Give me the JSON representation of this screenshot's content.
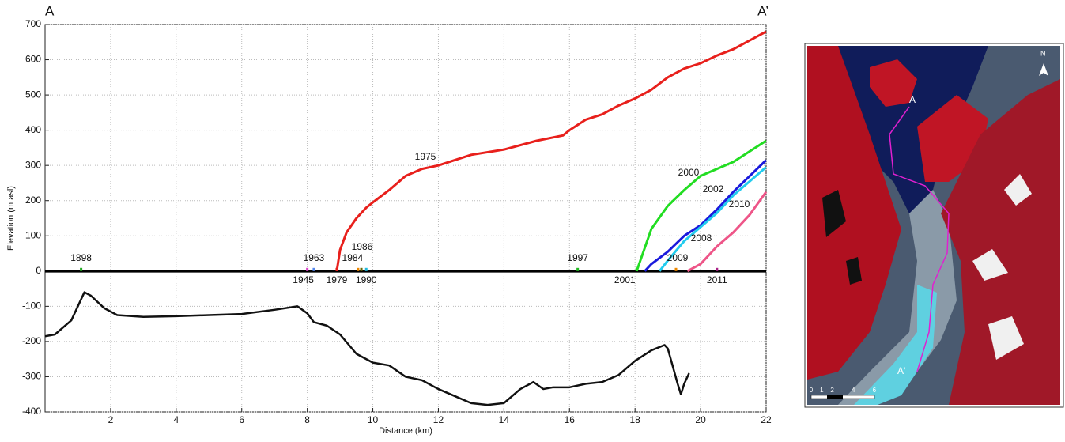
{
  "chart_data": {
    "type": "line",
    "corner_labels": [
      "A",
      "A’"
    ],
    "x_label": "Distance (km)",
    "y_label": "Elevation (m asl)",
    "xlim": [
      0,
      22
    ],
    "xticks": [
      2,
      4,
      6,
      8,
      10,
      12,
      14,
      16,
      18,
      20,
      22
    ],
    "ylim": [
      -400,
      700
    ],
    "yticks": [
      -400,
      -300,
      -200,
      -100,
      0,
      100,
      200,
      300,
      400,
      500,
      600,
      700
    ],
    "grid": true,
    "series": [
      {
        "name": "1975",
        "color": "#e8201c",
        "x": [
          8.9,
          9.0,
          9.2,
          9.5,
          9.8,
          10.0,
          10.5,
          11.0,
          11.5,
          12.0,
          13.0,
          14.0,
          15.0,
          15.8,
          16.0,
          16.5,
          17.0,
          17.5,
          18.0,
          18.5,
          19.0,
          19.5,
          20.0,
          20.5,
          21.0,
          21.5,
          22.0
        ],
        "values": [
          0,
          60,
          110,
          150,
          180,
          195,
          230,
          270,
          290,
          300,
          330,
          345,
          370,
          385,
          400,
          430,
          445,
          470,
          490,
          515,
          550,
          575,
          590,
          612,
          630,
          655,
          680
        ]
      },
      {
        "name": "2000",
        "color": "#22dd22",
        "x": [
          18.05,
          18.5,
          19.0,
          19.5,
          20.0,
          20.5,
          21.0,
          21.5,
          22.0
        ],
        "values": [
          0,
          120,
          185,
          230,
          270,
          290,
          310,
          340,
          370
        ]
      },
      {
        "name": "2002",
        "color": "#1a1adc",
        "x": [
          18.3,
          18.5,
          19.0,
          19.5,
          20.0,
          20.5,
          21.0,
          21.5,
          22.0
        ],
        "values": [
          0,
          20,
          55,
          100,
          130,
          175,
          225,
          270,
          315
        ]
      },
      {
        "name": "2010",
        "color": "#22ccee",
        "x": [
          18.75,
          19.0,
          19.5,
          20.0,
          20.5,
          21.0,
          21.5,
          22.0
        ],
        "values": [
          0,
          30,
          85,
          125,
          165,
          215,
          255,
          295
        ]
      },
      {
        "name": "2008",
        "color": "#ee5588",
        "x": [
          19.6,
          20.0,
          20.5,
          21.0,
          21.5,
          22.0
        ],
        "values": [
          0,
          20,
          70,
          110,
          160,
          225
        ]
      },
      {
        "color": "#111111",
        "x": [
          0,
          0.3,
          0.8,
          1.2,
          1.4,
          1.8,
          2.2,
          3.0,
          4.0,
          5.0,
          6.0,
          7.0,
          7.7,
          8.0,
          8.2,
          8.6,
          9.0,
          9.5,
          10.0,
          10.5,
          11.0,
          11.5,
          12.0,
          12.5,
          13.0,
          13.5,
          14.0,
          14.5,
          14.9,
          15.2,
          15.5,
          16.0,
          16.5,
          17.0,
          17.5,
          18.0,
          18.5,
          18.9,
          19.0,
          19.3,
          19.4,
          19.5,
          19.65
        ],
        "values": [
          -185,
          -180,
          -140,
          -60,
          -70,
          -105,
          -125,
          -130,
          -128,
          -125,
          -122,
          -110,
          -100,
          -120,
          -145,
          -155,
          -180,
          -235,
          -260,
          -268,
          -300,
          -310,
          -335,
          -355,
          -375,
          -380,
          -375,
          -335,
          -315,
          -335,
          -330,
          -330,
          -320,
          -315,
          -295,
          -255,
          -225,
          -210,
          -220,
          -320,
          -350,
          -320,
          -290
        ]
      }
    ],
    "markers": [
      {
        "label": "1898",
        "x": 1.1,
        "color": "#22aa22"
      },
      {
        "label": "1945",
        "x": 8.0,
        "color": "#dd44cc"
      },
      {
        "label": "1963",
        "x": 8.2,
        "color": "#5588ee"
      },
      {
        "label": "1979",
        "x": 8.9,
        "color": "#e8201c"
      },
      {
        "label": "1984",
        "x": 9.55,
        "color": "#ee8800"
      },
      {
        "label": "1986",
        "x": 9.65,
        "color": "#666600"
      },
      {
        "label": "1990",
        "x": 9.8,
        "color": "#22bbdd"
      },
      {
        "label": "1997",
        "x": 16.25,
        "color": "#22bb22"
      },
      {
        "label": "2001",
        "x": 18.05,
        "color": "#22dd22"
      },
      {
        "label": "2009",
        "x": 19.25,
        "color": "#ee8800"
      },
      {
        "label": "2011",
        "x": 20.5,
        "color": "#aa2288"
      }
    ]
  },
  "map": {
    "start_label": "A",
    "end_label": "A'",
    "north": "N",
    "scale_ticks": [
      "0",
      "1",
      "2",
      "4",
      "6"
    ]
  }
}
